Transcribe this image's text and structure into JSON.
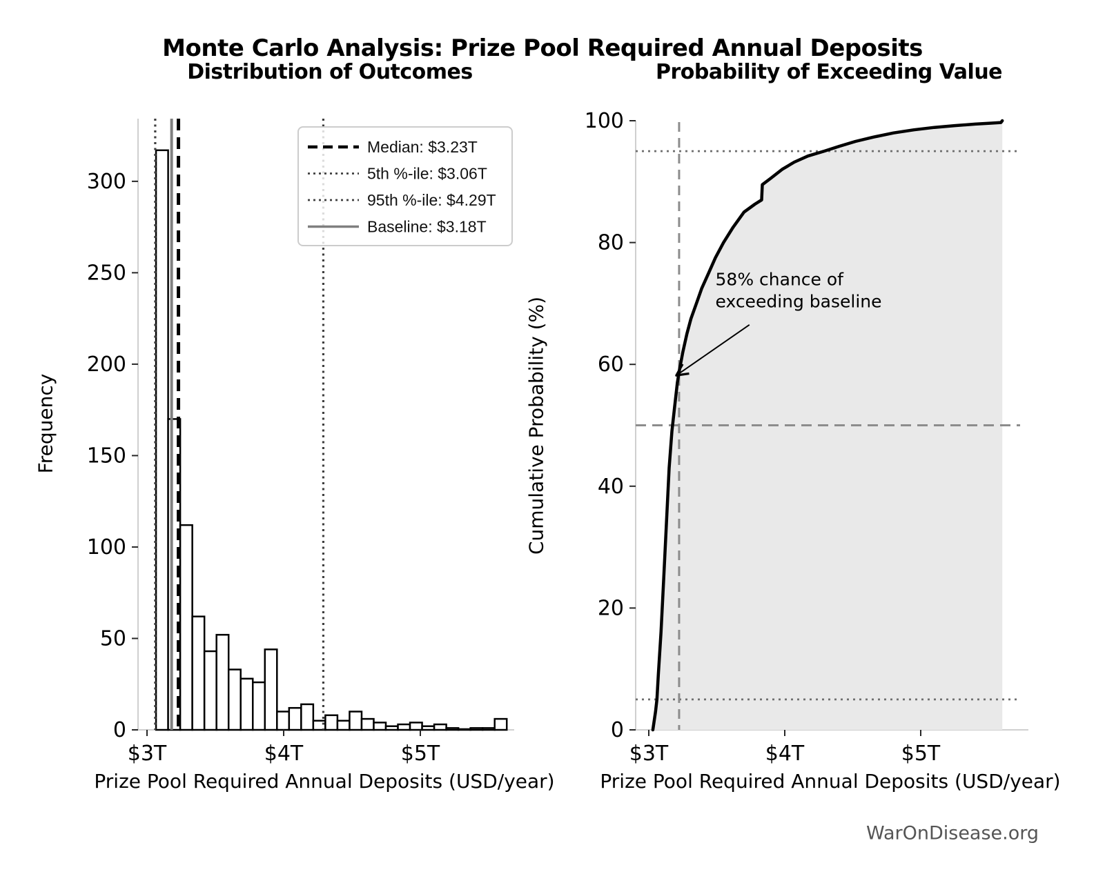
{
  "figure_title": "Monte Carlo Analysis: Prize Pool Required Annual Deposits",
  "watermark": "WarOnDisease.org",
  "chart_data": [
    {
      "type": "bar",
      "title": "Distribution of Outcomes",
      "xlabel": "Prize Pool Required Annual Deposits (USD/year)",
      "ylabel": "Frequency",
      "x_tick_values": [
        3,
        4,
        5
      ],
      "x_tick_labels": [
        "$3T",
        "$4T",
        "$5T"
      ],
      "y_ticks": [
        0,
        50,
        100,
        150,
        200,
        250,
        300
      ],
      "xlim": [
        2.93,
        5.69
      ],
      "ylim": [
        0,
        334
      ],
      "grid": false,
      "bin_start": 3.066,
      "bin_width": 0.0885,
      "frequencies": [
        317,
        170,
        112,
        62,
        43,
        52,
        33,
        28,
        26,
        44,
        10,
        12,
        14,
        5,
        8,
        5,
        10,
        6,
        4,
        2,
        3,
        4,
        2,
        3,
        1,
        0,
        1,
        1,
        6
      ],
      "bar_fill": "#ffffff",
      "bar_stroke": "#000000",
      "ref_lines": [
        {
          "label": "Median: $3.23T",
          "value": 3.23,
          "style": "dashed",
          "color": "#000000"
        },
        {
          "label": "5th %-ile: $3.06T",
          "value": 3.06,
          "style": "dotted",
          "color": "#3f3f3f"
        },
        {
          "label": "95th %-ile: $4.29T",
          "value": 4.29,
          "style": "dotted",
          "color": "#3f3f3f"
        },
        {
          "label": "Baseline: $3.18T",
          "value": 3.18,
          "style": "solid",
          "color": "#7f7f7f"
        }
      ],
      "legend_position": "upper right"
    },
    {
      "type": "line",
      "title": "Probability of Exceeding Value",
      "xlabel": "Prize Pool Required Annual Deposits (USD/year)",
      "ylabel": "Cumulative Probability (%)",
      "x_tick_values": [
        3,
        4,
        5
      ],
      "x_tick_labels": [
        "$3T",
        "$4T",
        "$5T"
      ],
      "y_ticks": [
        0,
        20,
        40,
        60,
        80,
        100
      ],
      "xlim": [
        2.9,
        5.79
      ],
      "ylim": [
        0,
        102
      ],
      "grid": false,
      "line_color": "#000000",
      "fill_under": true,
      "fill_color": "#e9e9e9",
      "curve": [
        [
          3.03,
          0
        ],
        [
          3.05,
          3
        ],
        [
          3.06,
          5
        ],
        [
          3.07,
          9
        ],
        [
          3.09,
          16
        ],
        [
          3.11,
          25
        ],
        [
          3.13,
          34
        ],
        [
          3.15,
          43
        ],
        [
          3.17,
          49
        ],
        [
          3.19,
          53
        ],
        [
          3.21,
          57
        ],
        [
          3.225,
          59
        ],
        [
          3.25,
          62
        ],
        [
          3.28,
          65
        ],
        [
          3.31,
          67.5
        ],
        [
          3.35,
          70
        ],
        [
          3.39,
          72.5
        ],
        [
          3.44,
          75
        ],
        [
          3.49,
          77.5
        ],
        [
          3.55,
          80
        ],
        [
          3.62,
          82.5
        ],
        [
          3.7,
          85
        ],
        [
          3.78,
          86.3
        ],
        [
          3.83,
          87
        ],
        [
          3.835,
          89.5
        ],
        [
          3.9,
          90.6
        ],
        [
          3.98,
          92
        ],
        [
          4.07,
          93.2
        ],
        [
          4.17,
          94.2
        ],
        [
          4.29,
          95
        ],
        [
          4.4,
          95.8
        ],
        [
          4.52,
          96.6
        ],
        [
          4.65,
          97.3
        ],
        [
          4.8,
          98
        ],
        [
          4.95,
          98.5
        ],
        [
          5.1,
          98.9
        ],
        [
          5.25,
          99.2
        ],
        [
          5.4,
          99.45
        ],
        [
          5.52,
          99.6
        ],
        [
          5.59,
          99.7
        ],
        [
          5.6,
          100
        ]
      ],
      "h_lines": [
        {
          "value": 95,
          "style": "dotted",
          "color": "#6e6e6e"
        },
        {
          "value": 50,
          "style": "dashed",
          "color": "#8c8c8c"
        },
        {
          "value": 5,
          "style": "dotted",
          "color": "#6e6e6e"
        }
      ],
      "v_line": {
        "value": 3.223,
        "style": "dashed",
        "color": "#8c8c8c"
      },
      "annotation": {
        "text_lines": [
          "58% chance of",
          "exceeding baseline"
        ],
        "text_xy": [
          3.49,
          73
        ],
        "arrow_start": [
          3.74,
          66.5
        ],
        "arrow_end": [
          3.21,
          58.3
        ]
      }
    }
  ]
}
